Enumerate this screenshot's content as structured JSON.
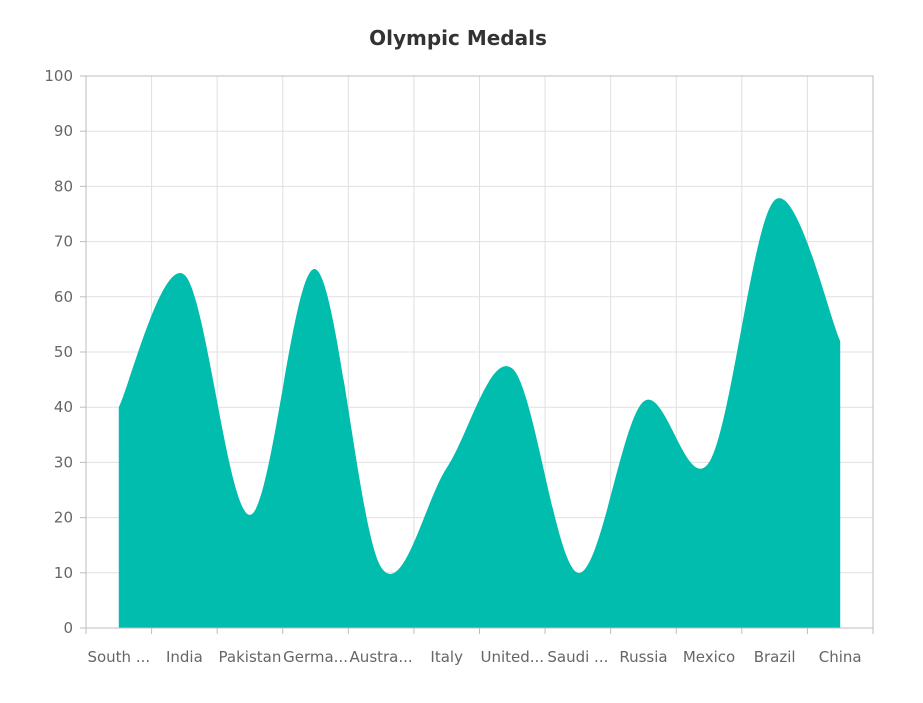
{
  "chart_data": {
    "type": "area",
    "title": "Olympic Medals",
    "xlabel": "",
    "ylabel": "",
    "categories": [
      "South ...",
      "India",
      "Pakistan",
      "Germa...",
      "Austra...",
      "Italy",
      "United...",
      "Saudi ...",
      "Russia",
      "Mexico",
      "Brazil",
      "China"
    ],
    "series": [
      {
        "values": [
          40,
          64,
          20.5,
          65,
          11,
          29,
          47,
          10,
          41,
          30,
          77.5,
          52
        ]
      }
    ],
    "ylim": [
      0,
      100
    ],
    "yticks": [
      0,
      10,
      20,
      30,
      40,
      50,
      60,
      70,
      80,
      90,
      100
    ],
    "grid": true,
    "legend": "none",
    "colors": {
      "area": "#00bdae",
      "grid": "#e0e0e0",
      "axis": "#bdbdbd",
      "text": "#666666",
      "title": "#333333"
    }
  }
}
